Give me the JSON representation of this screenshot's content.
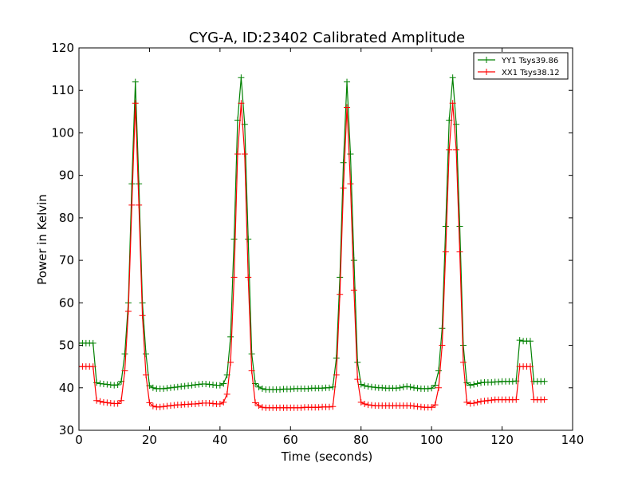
{
  "chart_data": {
    "type": "line",
    "title": "CYG-A, ID:23402 Calibrated Amplitude",
    "xlabel": "Time (seconds)",
    "ylabel": "Power in Kelvin",
    "xlim": [
      0,
      140
    ],
    "ylim": [
      30,
      120
    ],
    "xticks": [
      0,
      20,
      40,
      60,
      80,
      100,
      120,
      140
    ],
    "yticks": [
      30,
      40,
      50,
      60,
      70,
      80,
      90,
      100,
      110,
      120
    ],
    "grid": false,
    "legend_position": "top-right",
    "marker": "+",
    "series": [
      {
        "name": "YY1 Tsys39.86",
        "color": "#008000",
        "x": [
          0,
          1,
          2,
          3,
          4,
          5,
          6,
          7,
          8,
          9,
          10,
          11,
          12,
          13,
          14,
          15,
          16,
          17,
          18,
          19,
          20,
          21,
          22,
          23,
          24,
          25,
          26,
          27,
          28,
          29,
          30,
          31,
          32,
          33,
          34,
          35,
          36,
          37,
          38,
          39,
          40,
          41,
          42,
          43,
          44,
          45,
          46,
          47,
          48,
          49,
          50,
          51,
          52,
          53,
          54,
          55,
          56,
          57,
          58,
          59,
          60,
          61,
          62,
          63,
          64,
          65,
          66,
          67,
          68,
          69,
          70,
          71,
          72,
          73,
          74,
          75,
          76,
          77,
          78,
          79,
          80,
          81,
          82,
          83,
          84,
          85,
          86,
          87,
          88,
          89,
          90,
          91,
          92,
          93,
          94,
          95,
          96,
          97,
          98,
          99,
          100,
          101,
          102,
          103,
          104,
          105,
          106,
          107,
          108,
          109,
          110,
          111,
          112,
          113,
          114,
          115,
          116,
          117,
          118,
          119,
          120,
          121,
          122,
          123,
          124,
          125,
          126,
          127,
          128,
          129,
          130,
          131,
          132
        ],
        "values": [
          50.5,
          50.5,
          50.5,
          50.5,
          50.5,
          41.2,
          41.0,
          40.9,
          40.8,
          40.7,
          40.6,
          40.7,
          41.5,
          48,
          60,
          88,
          112,
          88,
          60,
          48,
          40.5,
          40.0,
          39.8,
          39.8,
          39.8,
          39.9,
          40.0,
          40.1,
          40.2,
          40.3,
          40.4,
          40.5,
          40.6,
          40.7,
          40.8,
          40.9,
          40.9,
          40.8,
          40.7,
          40.6,
          40.6,
          41.0,
          43,
          52,
          75,
          103,
          113,
          102,
          75,
          48,
          41.0,
          40.2,
          39.8,
          39.6,
          39.6,
          39.6,
          39.6,
          39.6,
          39.7,
          39.7,
          39.7,
          39.8,
          39.8,
          39.8,
          39.8,
          39.8,
          39.9,
          39.9,
          39.9,
          39.9,
          40.0,
          40.0,
          40.2,
          47,
          66,
          93,
          112,
          95,
          70,
          46,
          40.8,
          40.5,
          40.3,
          40.2,
          40.1,
          40.0,
          40.0,
          39.9,
          39.9,
          39.9,
          39.9,
          40.0,
          40.2,
          40.3,
          40.2,
          40.0,
          39.9,
          39.8,
          39.8,
          39.8,
          39.9,
          40.6,
          44,
          54,
          78,
          103,
          113,
          102,
          78,
          50,
          41.2,
          40.6,
          40.8,
          41.0,
          41.2,
          41.3,
          41.3,
          41.3,
          41.4,
          41.4,
          41.5,
          41.5,
          41.5,
          41.5,
          41.6,
          51.2,
          51.0,
          51.0,
          51.0,
          41.5,
          41.5,
          41.5,
          41.5
        ]
      },
      {
        "name": "XX1 Tsys38.12",
        "color": "#ff0000",
        "x": [
          0,
          1,
          2,
          3,
          4,
          5,
          6,
          7,
          8,
          9,
          10,
          11,
          12,
          13,
          14,
          15,
          16,
          17,
          18,
          19,
          20,
          21,
          22,
          23,
          24,
          25,
          26,
          27,
          28,
          29,
          30,
          31,
          32,
          33,
          34,
          35,
          36,
          37,
          38,
          39,
          40,
          41,
          42,
          43,
          44,
          45,
          46,
          47,
          48,
          49,
          50,
          51,
          52,
          53,
          54,
          55,
          56,
          57,
          58,
          59,
          60,
          61,
          62,
          63,
          64,
          65,
          66,
          67,
          68,
          69,
          70,
          71,
          72,
          73,
          74,
          75,
          76,
          77,
          78,
          79,
          80,
          81,
          82,
          83,
          84,
          85,
          86,
          87,
          88,
          89,
          90,
          91,
          92,
          93,
          94,
          95,
          96,
          97,
          98,
          99,
          100,
          101,
          102,
          103,
          104,
          105,
          106,
          107,
          108,
          109,
          110,
          111,
          112,
          113,
          114,
          115,
          116,
          117,
          118,
          119,
          120,
          121,
          122,
          123,
          124,
          125,
          126,
          127,
          128,
          129,
          130,
          131,
          132
        ],
        "values": [
          45.0,
          45.0,
          45.0,
          45.0,
          45.0,
          37.0,
          36.8,
          36.6,
          36.5,
          36.4,
          36.3,
          36.3,
          37,
          44,
          58,
          83,
          107,
          83,
          57,
          43,
          36.5,
          35.7,
          35.5,
          35.5,
          35.6,
          35.7,
          35.8,
          35.9,
          36.0,
          36.0,
          36.1,
          36.1,
          36.2,
          36.2,
          36.3,
          36.4,
          36.4,
          36.4,
          36.3,
          36.2,
          36.2,
          36.6,
          38.5,
          46,
          66,
          95,
          107,
          95,
          66,
          44,
          36.5,
          35.8,
          35.4,
          35.3,
          35.3,
          35.3,
          35.3,
          35.3,
          35.3,
          35.3,
          35.3,
          35.3,
          35.3,
          35.3,
          35.4,
          35.4,
          35.4,
          35.4,
          35.4,
          35.5,
          35.5,
          35.5,
          35.6,
          43,
          62,
          87,
          106,
          88,
          63,
          42,
          36.6,
          36.2,
          36.0,
          35.9,
          35.8,
          35.8,
          35.8,
          35.8,
          35.8,
          35.8,
          35.8,
          35.8,
          35.8,
          35.8,
          35.8,
          35.7,
          35.6,
          35.5,
          35.4,
          35.4,
          35.4,
          36.0,
          40,
          50,
          72,
          96,
          107,
          96,
          72,
          46,
          36.6,
          36.3,
          36.4,
          36.6,
          36.8,
          36.9,
          37.0,
          37.1,
          37.2,
          37.2,
          37.2,
          37.2,
          37.2,
          37.2,
          37.2,
          45.0,
          45.0,
          45.0,
          45.0,
          37.2,
          37.2,
          37.2,
          37.2
        ]
      }
    ]
  }
}
